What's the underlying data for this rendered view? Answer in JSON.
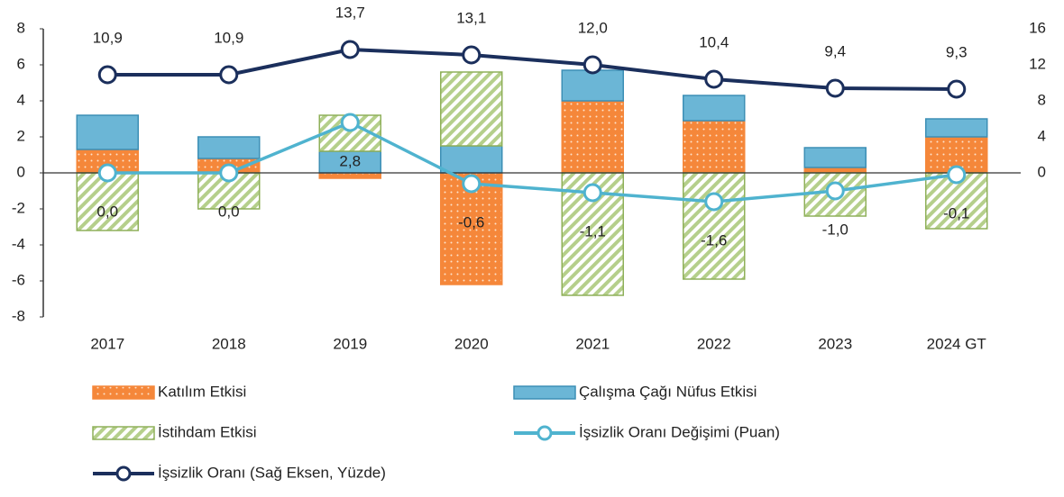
{
  "chart_data": {
    "type": "bar",
    "categories": [
      "2017",
      "2018",
      "2019",
      "2020",
      "2021",
      "2022",
      "2023",
      "2024 GT"
    ],
    "ylim": [
      -8,
      8
    ],
    "yticks": [
      -8,
      -6,
      -4,
      -2,
      0,
      2,
      4,
      6,
      8
    ],
    "y2lim": [
      -16,
      16
    ],
    "y2ticks": [
      0,
      4,
      8,
      12,
      16
    ],
    "series": [
      {
        "name": "Katılım Etkisi",
        "type": "bar",
        "color": "#f5873a",
        "values": [
          1.3,
          0.8,
          -0.3,
          -6.2,
          4.0,
          2.9,
          0.3,
          2.0
        ]
      },
      {
        "name": "Çalışma Çağı Nüfus Etkisi",
        "type": "bar",
        "color": "#6bb6d6",
        "values": [
          1.9,
          1.2,
          1.2,
          1.5,
          1.7,
          1.4,
          1.1,
          1.0
        ]
      },
      {
        "name": "İstihdam Etkisi",
        "type": "bar",
        "color": "#a9c57b",
        "values": [
          -3.2,
          -2.0,
          2.0,
          4.1,
          -6.8,
          -5.9,
          -2.4,
          -3.1
        ]
      },
      {
        "name": "İşsizlik Oranı Değişimi (Puan)",
        "type": "line",
        "color": "#4fb3cf",
        "values": [
          0.0,
          0.0,
          2.8,
          -0.6,
          -1.1,
          -1.6,
          -1.0,
          -0.1
        ],
        "value_labels": [
          "0,0",
          "0,0",
          "2,8",
          "-0,6",
          "-1,1",
          "-1,6",
          "-1,0",
          "-0,1"
        ]
      },
      {
        "name": "İşsizlik Oranı (Sağ Eksen, Yüzde)",
        "type": "line",
        "axis": "y2",
        "color": "#1b2f5c",
        "values": [
          10.9,
          10.9,
          13.7,
          13.1,
          12.0,
          10.4,
          9.4,
          9.3
        ],
        "value_labels": [
          "10,9",
          "10,9",
          "13,7",
          "13,1",
          "12,0",
          "10,4",
          "9,4",
          "9,3"
        ]
      }
    ]
  }
}
